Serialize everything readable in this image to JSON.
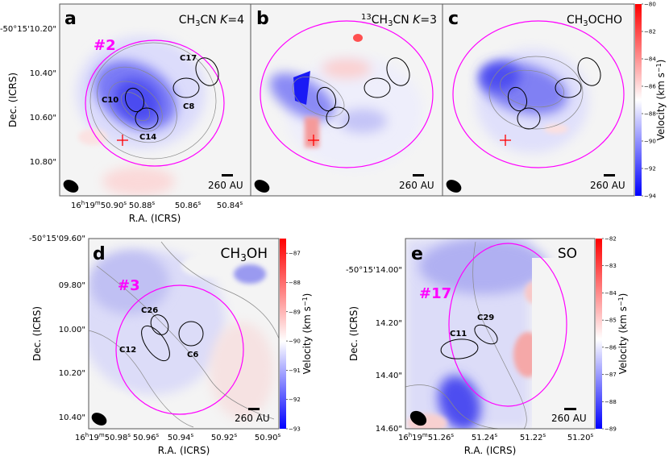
{
  "chart_data": [
    {
      "type": "heatmap",
      "panel_label": "a",
      "title": {
        "pre": "CH",
        "sub": "3",
        "mid": "CN ",
        "ital": "K",
        "post": "=4"
      },
      "region": "#2",
      "cores": [
        "C17",
        "C10",
        "C8",
        "C14"
      ],
      "scale_bar": "260 AU",
      "ylabel": "Dec. (ICRS)",
      "xlabel": "R.A. (ICRS)",
      "yticks": [
        "-50°15'10.20\"",
        "10.40\"",
        "10.60\"",
        "10.80\""
      ],
      "xticks": [
        {
          "h": "16",
          "m": "19",
          "s": "50.90"
        },
        "50.88",
        "50.86",
        "50.84"
      ],
      "colorbar": {
        "label": "Velocity (km s",
        "exp": "−1",
        "label_end": ")",
        "range": [
          -94,
          -80
        ],
        "ticks": [
          -80,
          -82,
          -84,
          -86,
          -88,
          -90,
          -92,
          -94
        ],
        "shared_with": [
          "a",
          "b",
          "c"
        ]
      }
    },
    {
      "type": "heatmap",
      "panel_label": "b",
      "title": {
        "sup": "13",
        "pre": "CH",
        "sub": "3",
        "mid": "CN ",
        "ital": "K",
        "post": "=3"
      },
      "scale_bar": "260 AU"
    },
    {
      "type": "heatmap",
      "panel_label": "c",
      "title": {
        "pre": "CH",
        "sub": "3",
        "post": "OCHO"
      },
      "scale_bar": "260 AU"
    },
    {
      "type": "heatmap",
      "panel_label": "d",
      "title": {
        "pre": "CH",
        "sub": "3",
        "post": "OH"
      },
      "region": "#3",
      "cores": [
        "C26",
        "C12",
        "C6"
      ],
      "scale_bar": "260 AU",
      "ylabel": "Dec. (ICRS)",
      "xlabel": "R.A. (ICRS)",
      "yticks": [
        "-50°15'09.60\"",
        "09.80\"",
        "10.00\"",
        "10.20\"",
        "10.40\""
      ],
      "xticks": [
        {
          "h": "16",
          "m": "19",
          "s": "50.98"
        },
        "50.96",
        "50.94",
        "50.92",
        "50.90"
      ],
      "colorbar": {
        "label": "Velocity (km s",
        "exp": "−1",
        "label_end": ")",
        "range": [
          -93,
          -86.5
        ],
        "ticks": [
          -87,
          -88,
          -89,
          -90,
          -91,
          -92,
          -93
        ]
      }
    },
    {
      "type": "heatmap",
      "panel_label": "e",
      "title": {
        "pre": "SO"
      },
      "region": "#17",
      "cores": [
        "C29",
        "C11"
      ],
      "scale_bar": "260 AU",
      "ylabel": "Dec. (ICRS)",
      "xlabel": "R.A. (ICRS)",
      "yticks": [
        "-50°15'14.00\"",
        "14.20\"",
        "14.40\"",
        "14.60\""
      ],
      "xticks": [
        {
          "h": "16",
          "m": "19",
          "s": "51.26"
        },
        "51.24",
        "51.22",
        "51.20"
      ],
      "colorbar": {
        "label": "Velocity (km s",
        "exp": "−1",
        "label_end": ")",
        "range": [
          -89,
          -82
        ],
        "ticks": [
          -82,
          -83,
          -84,
          -85,
          -86,
          -87,
          -88,
          -89
        ]
      }
    }
  ],
  "colors": {
    "blue": "#0000ff",
    "white": "#ffffff",
    "red": "#ff0000",
    "region_ellipse": "#ff00ff",
    "core_ellipse": "#000000",
    "contour": "#888888",
    "background": "#f4f4f4",
    "marker": "#ff0000"
  }
}
